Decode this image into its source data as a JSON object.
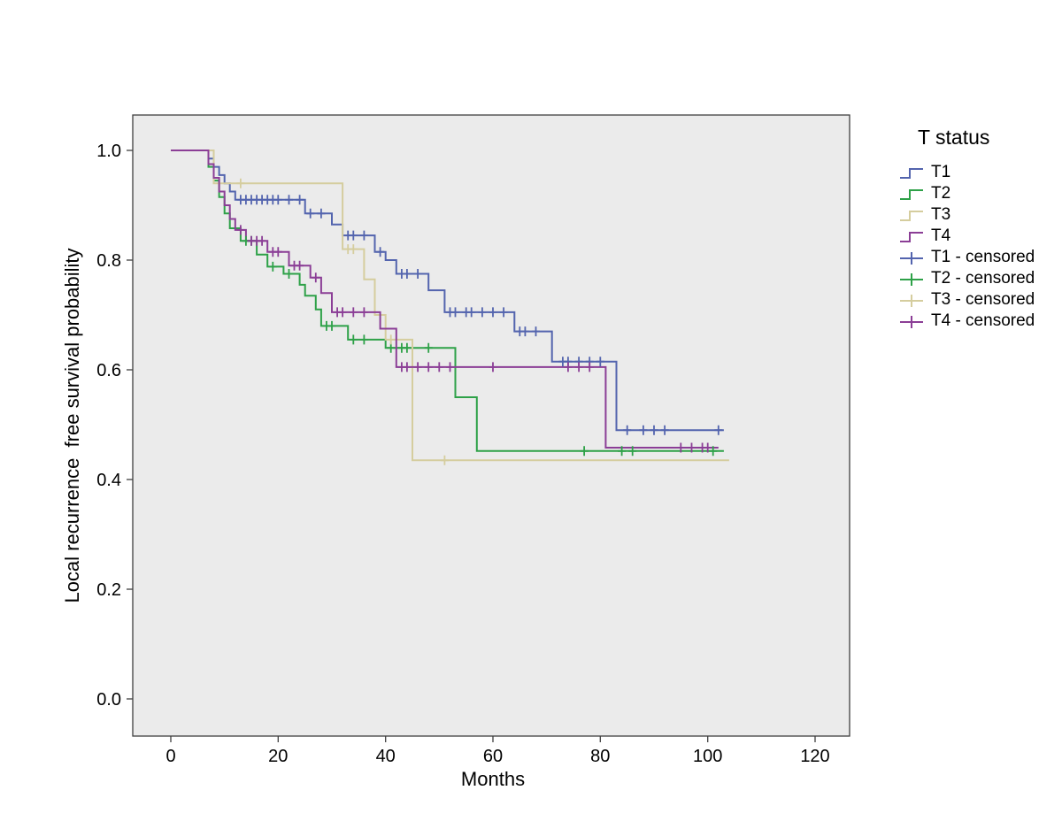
{
  "chart_data": {
    "type": "line",
    "subtype": "kaplan-meier-step",
    "title": "",
    "xlabel": "Months",
    "ylabel": "Local recurrence  free survival probability",
    "xlim": [
      0,
      120
    ],
    "ylim": [
      0.0,
      1.0
    ],
    "x_ticks": [
      0,
      20,
      40,
      60,
      80,
      100,
      120
    ],
    "y_ticks": [
      0.0,
      0.2,
      0.4,
      0.6,
      0.8,
      1.0
    ],
    "y_tick_labels": [
      "0.0",
      "0.2",
      "0.4",
      "0.6",
      "0.8",
      "1.0"
    ],
    "grid": false,
    "plot_background": "#EBEBEB",
    "plot_border_color": "#3F3F3F",
    "legend_position": "right",
    "legend": {
      "title": "T status",
      "entries": [
        {
          "label": "T1",
          "series": 0,
          "glyph": "step"
        },
        {
          "label": "T2",
          "series": 1,
          "glyph": "step"
        },
        {
          "label": "T3",
          "series": 2,
          "glyph": "step"
        },
        {
          "label": "T4",
          "series": 3,
          "glyph": "step"
        },
        {
          "label": "T1 - censored",
          "series": 0,
          "glyph": "censor"
        },
        {
          "label": "T2 - censored",
          "series": 1,
          "glyph": "censor"
        },
        {
          "label": "T3 - censored",
          "series": 2,
          "glyph": "censor"
        },
        {
          "label": "T4 - censored",
          "series": 3,
          "glyph": "censor"
        }
      ]
    },
    "series": [
      {
        "name": "T1",
        "color": "#5364AE",
        "steps": [
          [
            0,
            1.0
          ],
          [
            7,
            0.985
          ],
          [
            8,
            0.97
          ],
          [
            9,
            0.955
          ],
          [
            10,
            0.94
          ],
          [
            11,
            0.925
          ],
          [
            12,
            0.91
          ],
          [
            25,
            0.885
          ],
          [
            30,
            0.865
          ],
          [
            32,
            0.845
          ],
          [
            38,
            0.815
          ],
          [
            40,
            0.8
          ],
          [
            42,
            0.775
          ],
          [
            48,
            0.745
          ],
          [
            51,
            0.705
          ],
          [
            64,
            0.67
          ],
          [
            71,
            0.615
          ],
          [
            83,
            0.49
          ],
          [
            103,
            0.49
          ]
        ],
        "censored": [
          [
            13,
            0.91
          ],
          [
            14,
            0.91
          ],
          [
            15,
            0.91
          ],
          [
            16,
            0.91
          ],
          [
            17,
            0.91
          ],
          [
            18,
            0.91
          ],
          [
            19,
            0.91
          ],
          [
            20,
            0.91
          ],
          [
            22,
            0.91
          ],
          [
            24,
            0.91
          ],
          [
            26,
            0.885
          ],
          [
            28,
            0.885
          ],
          [
            33,
            0.845
          ],
          [
            34,
            0.845
          ],
          [
            36,
            0.845
          ],
          [
            39,
            0.815
          ],
          [
            43,
            0.775
          ],
          [
            44,
            0.775
          ],
          [
            46,
            0.775
          ],
          [
            52,
            0.705
          ],
          [
            53,
            0.705
          ],
          [
            55,
            0.705
          ],
          [
            56,
            0.705
          ],
          [
            58,
            0.705
          ],
          [
            60,
            0.705
          ],
          [
            62,
            0.705
          ],
          [
            65,
            0.67
          ],
          [
            66,
            0.67
          ],
          [
            68,
            0.67
          ],
          [
            73,
            0.615
          ],
          [
            74,
            0.615
          ],
          [
            76,
            0.615
          ],
          [
            78,
            0.615
          ],
          [
            80,
            0.615
          ],
          [
            85,
            0.49
          ],
          [
            88,
            0.49
          ],
          [
            90,
            0.49
          ],
          [
            92,
            0.49
          ],
          [
            102,
            0.49
          ]
        ]
      },
      {
        "name": "T2",
        "color": "#2EA148",
        "steps": [
          [
            0,
            1.0
          ],
          [
            7,
            0.97
          ],
          [
            8,
            0.945
          ],
          [
            9,
            0.915
          ],
          [
            10,
            0.885
          ],
          [
            11,
            0.858
          ],
          [
            13,
            0.835
          ],
          [
            16,
            0.81
          ],
          [
            18,
            0.788
          ],
          [
            21,
            0.775
          ],
          [
            24,
            0.755
          ],
          [
            25,
            0.735
          ],
          [
            27,
            0.71
          ],
          [
            28,
            0.68
          ],
          [
            33,
            0.655
          ],
          [
            40,
            0.64
          ],
          [
            53,
            0.55
          ],
          [
            57,
            0.452
          ],
          [
            103,
            0.452
          ]
        ],
        "censored": [
          [
            14,
            0.835
          ],
          [
            15,
            0.835
          ],
          [
            19,
            0.788
          ],
          [
            22,
            0.775
          ],
          [
            29,
            0.68
          ],
          [
            30,
            0.68
          ],
          [
            34,
            0.655
          ],
          [
            36,
            0.655
          ],
          [
            41,
            0.64
          ],
          [
            43,
            0.64
          ],
          [
            44,
            0.64
          ],
          [
            48,
            0.64
          ],
          [
            77,
            0.452
          ],
          [
            84,
            0.452
          ],
          [
            86,
            0.452
          ],
          [
            101,
            0.452
          ]
        ]
      },
      {
        "name": "T3",
        "color": "#D5CD9E",
        "steps": [
          [
            0,
            1.0
          ],
          [
            8,
            0.94
          ],
          [
            32,
            0.82
          ],
          [
            36,
            0.765
          ],
          [
            38,
            0.7
          ],
          [
            40,
            0.655
          ],
          [
            45,
            0.435
          ],
          [
            104,
            0.435
          ]
        ],
        "censored": [
          [
            13,
            0.94
          ],
          [
            33,
            0.82
          ],
          [
            34,
            0.82
          ],
          [
            41,
            0.655
          ],
          [
            51,
            0.435
          ]
        ]
      },
      {
        "name": "T4",
        "color": "#8B3E96",
        "steps": [
          [
            0,
            1.0
          ],
          [
            7,
            0.975
          ],
          [
            8,
            0.95
          ],
          [
            9,
            0.925
          ],
          [
            10,
            0.9
          ],
          [
            11,
            0.875
          ],
          [
            12,
            0.855
          ],
          [
            14,
            0.835
          ],
          [
            18,
            0.815
          ],
          [
            22,
            0.79
          ],
          [
            26,
            0.768
          ],
          [
            28,
            0.74
          ],
          [
            30,
            0.705
          ],
          [
            39,
            0.675
          ],
          [
            42,
            0.605
          ],
          [
            81,
            0.458
          ],
          [
            102,
            0.458
          ]
        ],
        "censored": [
          [
            13,
            0.855
          ],
          [
            15,
            0.835
          ],
          [
            16,
            0.835
          ],
          [
            17,
            0.835
          ],
          [
            19,
            0.815
          ],
          [
            20,
            0.815
          ],
          [
            23,
            0.79
          ],
          [
            24,
            0.79
          ],
          [
            27,
            0.768
          ],
          [
            31,
            0.705
          ],
          [
            32,
            0.705
          ],
          [
            34,
            0.705
          ],
          [
            36,
            0.705
          ],
          [
            43,
            0.605
          ],
          [
            44,
            0.605
          ],
          [
            46,
            0.605
          ],
          [
            48,
            0.605
          ],
          [
            50,
            0.605
          ],
          [
            52,
            0.605
          ],
          [
            60,
            0.605
          ],
          [
            74,
            0.605
          ],
          [
            76,
            0.605
          ],
          [
            78,
            0.605
          ],
          [
            95,
            0.458
          ],
          [
            97,
            0.458
          ],
          [
            99,
            0.458
          ],
          [
            100,
            0.458
          ]
        ]
      }
    ]
  }
}
